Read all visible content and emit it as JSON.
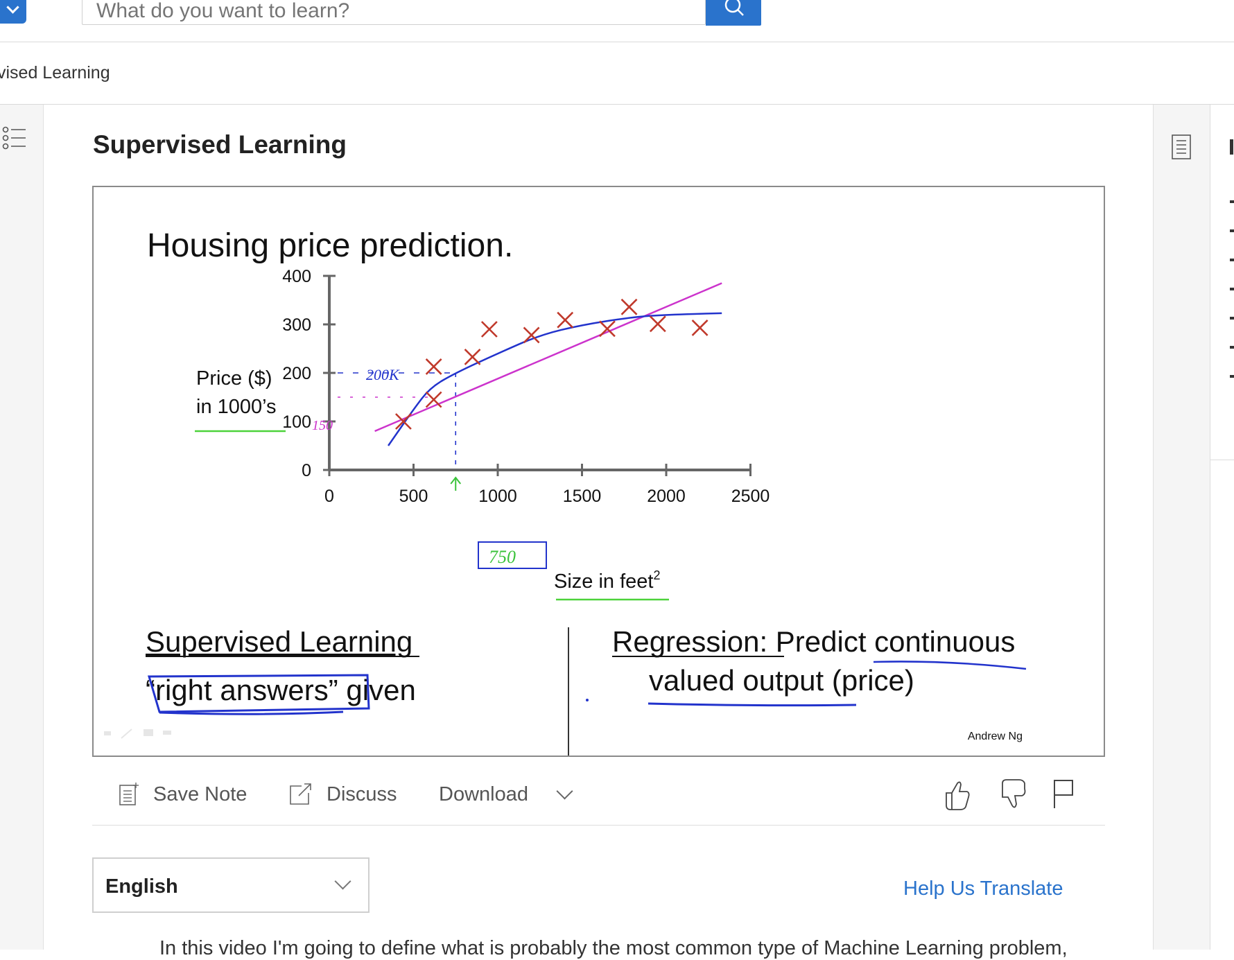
{
  "search": {
    "placeholder": "What do you want to learn?"
  },
  "breadcrumb": "vised Learning",
  "lecture": {
    "title": "Supervised Learning"
  },
  "slide": {
    "title": "Housing price prediction.",
    "ylabel_line1": "Price ($)",
    "ylabel_line2": "in 1000’s",
    "xlabel": "Size in feet",
    "xlabel_sup": "2",
    "left_heading": "Supervised Learning",
    "left_text_quoted": "“right answers”",
    "left_text_rest": " given",
    "right_heading": "Regression:",
    "right_text1": " Predict continuous",
    "right_text2": "valued output (price)",
    "credit": "Andrew Ng",
    "annotations": {
      "y200": "200K",
      "y150": "150",
      "x750": "750"
    }
  },
  "chart_data": {
    "type": "scatter",
    "title": "Housing price prediction.",
    "xlabel": "Size in feet²",
    "ylabel": "Price ($) in 1000’s",
    "xlim": [
      0,
      2500
    ],
    "ylim": [
      0,
      400
    ],
    "x_ticks": [
      0,
      500,
      1000,
      1500,
      2000,
      2500
    ],
    "y_ticks": [
      0,
      100,
      200,
      300,
      400
    ],
    "x": [
      440,
      620,
      620,
      850,
      950,
      1200,
      1400,
      1650,
      1780,
      1950,
      2200
    ],
    "y": [
      100,
      145,
      213,
      233,
      290,
      278,
      309,
      291,
      336,
      301,
      293
    ],
    "fit_lines": [
      {
        "color": "#cc33cc",
        "kind": "straight",
        "points": [
          [
            270,
            80
          ],
          [
            2330,
            385
          ]
        ]
      },
      {
        "color": "#2233cc",
        "kind": "curve",
        "points": [
          [
            350,
            50
          ],
          [
            500,
            125
          ],
          [
            600,
            170
          ],
          [
            750,
            200
          ],
          [
            1000,
            240
          ],
          [
            1250,
            278
          ],
          [
            1500,
            299
          ],
          [
            1800,
            315
          ],
          [
            2000,
            320
          ],
          [
            2330,
            323
          ]
        ]
      }
    ],
    "colors": {
      "points": "#c0392b",
      "straight_fit": "#cc33cc",
      "curve_fit": "#2233cc"
    }
  },
  "actions": {
    "save_note": "Save Note",
    "discuss": "Discuss",
    "download": "Download"
  },
  "language": {
    "selected": "English"
  },
  "help_translate": "Help Us Translate",
  "transcript_partial": "In this video I'm going to define what is probably the most common type of Machine Learning problem,",
  "icons": {
    "menu": "chevron-down-icon",
    "search": "search-icon",
    "outline": "list-icon",
    "notes": "notes-icon",
    "save": "note-add-icon",
    "discuss": "external-link-icon",
    "like": "thumbs-up-icon",
    "dislike": "thumbs-down-icon",
    "flag": "flag-icon"
  },
  "accent_color": "#2a73cc"
}
